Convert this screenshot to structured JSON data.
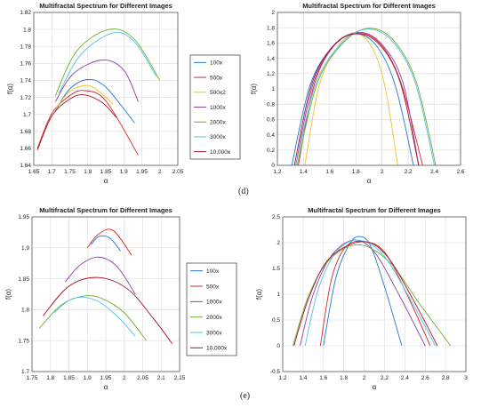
{
  "panel_labels": {
    "d": "(d)",
    "e": "(e)"
  },
  "colors": {
    "100x": "#1f77d4",
    "500x": "#d62728",
    "500x2": "#f2c12e",
    "1000x": "#8e3fa8",
    "2000x": "#6fae2d",
    "3000x": "#4fc3e6",
    "10,000x": "#a3142e"
  },
  "chart_data": [
    {
      "id": "d-left",
      "type": "line",
      "title": "Multifractal Spectrum for Different Images",
      "xlabel": "α",
      "ylabel": "f(α)",
      "xlim": [
        1.65,
        2.05
      ],
      "ylim": [
        1.64,
        1.82
      ],
      "xticks": [
        "1.65",
        "1.7",
        "1.75",
        "1.8",
        "1.85",
        "1.9",
        "1.95",
        "2",
        "2.05"
      ],
      "yticks": [
        "1.64",
        "1.66",
        "1.68",
        "1.7",
        "1.72",
        "1.74",
        "1.76",
        "1.78",
        "1.8",
        "1.82"
      ],
      "grid": true,
      "legend": [
        "100x",
        "500x",
        "500x2",
        "1000x",
        "2000x",
        "3000x",
        "10,000x"
      ],
      "series": [
        {
          "name": "100x",
          "x": [
            1.71,
            1.75,
            1.8,
            1.85,
            1.93
          ],
          "y": [
            1.704,
            1.73,
            1.741,
            1.732,
            1.69
          ]
        },
        {
          "name": "500x",
          "x": [
            1.66,
            1.7,
            1.75,
            1.79,
            1.85,
            1.94
          ],
          "y": [
            1.66,
            1.701,
            1.722,
            1.728,
            1.716,
            1.652
          ]
        },
        {
          "name": "500x2",
          "x": [
            1.71,
            1.75,
            1.8,
            1.84,
            1.87
          ],
          "y": [
            1.706,
            1.727,
            1.734,
            1.724,
            1.712
          ]
        },
        {
          "name": "1000x",
          "x": [
            1.71,
            1.76,
            1.84,
            1.9,
            1.94
          ],
          "y": [
            1.715,
            1.748,
            1.764,
            1.752,
            1.715
          ]
        },
        {
          "name": "2000x",
          "x": [
            1.71,
            1.77,
            1.86,
            1.93,
            2.0
          ],
          "y": [
            1.722,
            1.775,
            1.8,
            1.788,
            1.74
          ]
        },
        {
          "name": "3000x",
          "x": [
            1.72,
            1.78,
            1.87,
            1.93,
            1.99
          ],
          "y": [
            1.725,
            1.77,
            1.796,
            1.785,
            1.745
          ]
        },
        {
          "name": "10,000x",
          "x": [
            1.66,
            1.7,
            1.75,
            1.79,
            1.84,
            1.88
          ],
          "y": [
            1.658,
            1.698,
            1.718,
            1.723,
            1.714,
            1.696
          ]
        }
      ]
    },
    {
      "id": "d-right",
      "type": "line",
      "title": "Multifractal Spectrum for Different Images",
      "xlabel": "α",
      "ylabel": "f(α)",
      "xlim": [
        1.2,
        2.6
      ],
      "ylim": [
        0,
        2
      ],
      "xticks": [
        "1.2",
        "1.4",
        "1.6",
        "1.8",
        "2",
        "2.2",
        "2.4",
        "2.6"
      ],
      "yticks": [
        "0",
        "0.2",
        "0.4",
        "0.6",
        "0.8",
        "1",
        "1.2",
        "1.4",
        "1.6",
        "1.8",
        "2"
      ],
      "grid": true,
      "series": [
        {
          "name": "100x",
          "x": [
            1.31,
            1.45,
            1.62,
            1.78,
            1.95,
            2.1,
            2.24
          ],
          "y": [
            0,
            1.05,
            1.55,
            1.72,
            1.58,
            1.05,
            0
          ]
        },
        {
          "name": "500x",
          "x": [
            1.36,
            1.48,
            1.63,
            1.8,
            1.98,
            2.14,
            2.31
          ],
          "y": [
            0,
            1.05,
            1.56,
            1.73,
            1.6,
            1.1,
            0
          ]
        },
        {
          "name": "500x2",
          "x": [
            1.41,
            1.52,
            1.66,
            1.8,
            1.92,
            2.02,
            2.12
          ],
          "y": [
            0,
            1.05,
            1.55,
            1.72,
            1.55,
            1.05,
            0
          ]
        },
        {
          "name": "1000x",
          "x": [
            1.34,
            1.47,
            1.63,
            1.82,
            2.0,
            2.16,
            2.28
          ],
          "y": [
            0,
            1.05,
            1.56,
            1.74,
            1.58,
            1.08,
            0
          ]
        },
        {
          "name": "2000x",
          "x": [
            1.35,
            1.5,
            1.68,
            1.88,
            2.08,
            2.26,
            2.41
          ],
          "y": [
            0,
            1.05,
            1.56,
            1.79,
            1.65,
            1.1,
            0
          ]
        },
        {
          "name": "3000x",
          "x": [
            1.34,
            1.49,
            1.67,
            1.87,
            2.07,
            2.25,
            2.4
          ],
          "y": [
            0,
            1.05,
            1.56,
            1.78,
            1.64,
            1.1,
            0
          ]
        },
        {
          "name": "10,000x",
          "x": [
            1.33,
            1.46,
            1.62,
            1.8,
            1.98,
            2.14,
            2.28
          ],
          "y": [
            0,
            1.05,
            1.55,
            1.72,
            1.58,
            1.08,
            0
          ]
        }
      ]
    },
    {
      "id": "e-left",
      "type": "line",
      "title": "Multifractal Spectrum for Different Images",
      "xlabel": "α",
      "ylabel": "f(α)",
      "xlim": [
        1.75,
        2.15
      ],
      "ylim": [
        1.7,
        1.95
      ],
      "xticks": [
        "1.75",
        "1.8",
        "1.85",
        "1.9",
        "1.95",
        "2",
        "2.05",
        "2.1",
        "2.15"
      ],
      "yticks": [
        "1.7",
        "1.75",
        "1.8",
        "1.85",
        "1.9",
        "1.95"
      ],
      "grid": true,
      "legend": [
        "100x",
        "500x",
        "1000x",
        "2000x",
        "3000x",
        "10,000x"
      ],
      "series": [
        {
          "name": "100x",
          "x": [
            1.91,
            1.93,
            1.96,
            1.99
          ],
          "y": [
            1.905,
            1.918,
            1.916,
            1.895
          ]
        },
        {
          "name": "500x",
          "x": [
            1.9,
            1.93,
            1.97,
            2.02
          ],
          "y": [
            1.9,
            1.922,
            1.928,
            1.888
          ]
        },
        {
          "name": "1000x",
          "x": [
            1.84,
            1.88,
            1.93,
            1.98,
            2.03
          ],
          "y": [
            1.845,
            1.872,
            1.885,
            1.87,
            1.825
          ]
        },
        {
          "name": "2000x",
          "x": [
            1.77,
            1.83,
            1.89,
            1.94,
            2.0,
            2.06
          ],
          "y": [
            1.77,
            1.808,
            1.822,
            1.818,
            1.795,
            1.75
          ]
        },
        {
          "name": "3000x",
          "x": [
            1.81,
            1.86,
            1.92,
            1.98,
            2.03
          ],
          "y": [
            1.795,
            1.818,
            1.816,
            1.79,
            1.757
          ]
        },
        {
          "name": "10,000x",
          "x": [
            1.78,
            1.85,
            1.93,
            2.01,
            2.08,
            2.13
          ],
          "y": [
            1.79,
            1.838,
            1.852,
            1.833,
            1.785,
            1.745
          ]
        }
      ]
    },
    {
      "id": "e-right",
      "type": "line",
      "title": "Multifractal Spectrum for Different Images",
      "xlabel": "α",
      "ylabel": "f(α)",
      "xlim": [
        1.2,
        3
      ],
      "ylim": [
        -0.5,
        2.5
      ],
      "xticks": [
        "1.2",
        "1.4",
        "1.6",
        "1.8",
        "2",
        "2.2",
        "2.4",
        "2.6",
        "2.8",
        "3"
      ],
      "yticks": [
        "-0.5",
        "0",
        "0.5",
        "1",
        "1.5",
        "2",
        "2.5"
      ],
      "grid": true,
      "series": [
        {
          "name": "100x",
          "x": [
            1.6,
            1.72,
            1.85,
            1.95,
            2.06,
            2.2,
            2.37
          ],
          "y": [
            0,
            1.3,
            1.95,
            2.12,
            1.95,
            1.15,
            0
          ]
        },
        {
          "name": "500x",
          "x": [
            1.57,
            1.68,
            1.82,
            2.0,
            2.2,
            2.42,
            2.65
          ],
          "y": [
            0,
            1.3,
            1.92,
            2.02,
            1.82,
            1.0,
            0
          ]
        },
        {
          "name": "1000x",
          "x": [
            1.37,
            1.5,
            1.68,
            1.9,
            2.1,
            2.34,
            2.6
          ],
          "y": [
            0,
            1.0,
            1.75,
            2.05,
            1.82,
            1.0,
            0
          ]
        },
        {
          "name": "2000x",
          "x": [
            1.3,
            1.45,
            1.65,
            1.94,
            2.25,
            2.55,
            2.85
          ],
          "y": [
            0,
            0.95,
            1.65,
            1.96,
            1.62,
            0.8,
            0
          ]
        },
        {
          "name": "3000x",
          "x": [
            1.42,
            1.55,
            1.72,
            1.93,
            2.18,
            2.44,
            2.7
          ],
          "y": [
            0,
            1.1,
            1.8,
            2.05,
            1.78,
            0.95,
            0
          ]
        },
        {
          "name": "10,000x",
          "x": [
            1.31,
            1.46,
            1.66,
            1.98,
            2.22,
            2.48,
            2.72
          ],
          "y": [
            0,
            0.95,
            1.7,
            2.02,
            1.75,
            0.9,
            0
          ]
        }
      ]
    }
  ]
}
